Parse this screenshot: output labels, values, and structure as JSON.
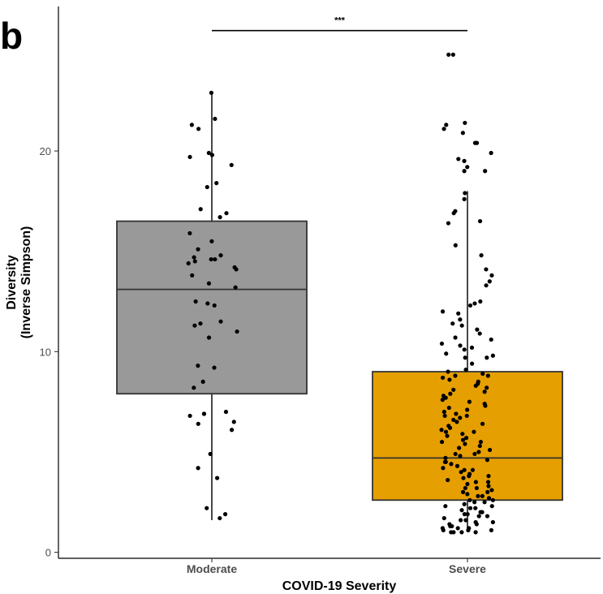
{
  "panel_label": "b",
  "chart_data": {
    "type": "boxplot",
    "xlabel": "COVID-19 Severity",
    "ylabel_line1": "Diversity",
    "ylabel_line2": "(Inverse Simpson)",
    "categories": [
      "Moderate",
      "Severe"
    ],
    "ylim": [
      -0.3,
      27.2
    ],
    "yticks": [
      0,
      10,
      20
    ],
    "grid": false,
    "significance": {
      "label": "***",
      "between": [
        "Moderate",
        "Severe"
      ],
      "y": 26.0
    },
    "boxes": [
      {
        "category": "Moderate",
        "color": "#999999",
        "whisker_low": 1.6,
        "q1": 7.9,
        "median": 13.1,
        "q3": 16.5,
        "whisker_high": 22.9
      },
      {
        "category": "Severe",
        "color": "#E69F00",
        "whisker_low": 1.0,
        "q1": 2.6,
        "median": 4.7,
        "q3": 9.0,
        "whisker_high": 18.0
      }
    ],
    "points": [
      {
        "category": "Moderate",
        "values": [
          22.9,
          21.6,
          21.3,
          21.1,
          19.9,
          19.8,
          19.7,
          19.3,
          18.4,
          18.2,
          17.1,
          16.9,
          16.7,
          15.9,
          15.5,
          15.1,
          14.8,
          14.7,
          14.6,
          14.6,
          14.5,
          14.4,
          14.2,
          14.1,
          13.8,
          13.4,
          13.2,
          12.5,
          12.4,
          12.3,
          11.5,
          11.4,
          11.3,
          11.0,
          10.7,
          9.3,
          9.2,
          8.5,
          8.2,
          7.0,
          6.9,
          6.9,
          6.8,
          6.5,
          6.4,
          6.1,
          4.9,
          4.2,
          3.7,
          2.2,
          1.9,
          1.7
        ]
      },
      {
        "category": "Severe",
        "values": [
          24.8,
          24.8,
          21.4,
          21.3,
          21.1,
          20.9,
          20.4,
          20.4,
          19.9,
          19.6,
          19.5,
          19.2,
          19.0,
          19.0,
          17.9,
          17.6,
          17.0,
          16.9,
          16.5,
          16.4,
          15.3,
          14.8,
          14.1,
          13.8,
          13.5,
          13.3,
          12.5,
          12.4,
          12.3,
          12.0,
          11.9,
          11.6,
          11.4,
          11.3,
          11.1,
          10.9,
          10.7,
          10.6,
          10.4,
          10.3,
          10.2,
          10.1,
          9.9,
          9.8,
          9.7,
          9.7,
          9.4,
          9.1,
          9.0,
          8.9,
          8.8,
          8.8,
          8.7,
          8.6,
          8.5,
          8.4,
          8.3,
          8.2,
          8.1,
          8.0,
          7.9,
          7.8,
          7.7,
          7.6,
          7.5,
          7.4,
          7.3,
          7.2,
          7.1,
          7.0,
          6.9,
          6.8,
          6.8,
          6.7,
          6.6,
          6.5,
          6.4,
          6.3,
          6.2,
          6.1,
          6.0,
          6.0,
          5.9,
          5.8,
          5.7,
          5.6,
          5.5,
          5.5,
          5.4,
          5.3,
          5.2,
          5.1,
          5.0,
          4.9,
          4.9,
          4.8,
          4.7,
          4.6,
          4.5,
          4.5,
          4.4,
          4.3,
          4.2,
          4.1,
          4.1,
          4.0,
          3.9,
          3.8,
          3.8,
          3.7,
          3.6,
          3.5,
          3.5,
          3.4,
          3.3,
          3.2,
          3.2,
          3.1,
          3.0,
          3.0,
          2.9,
          2.8,
          2.8,
          2.7,
          2.6,
          2.6,
          2.5,
          2.5,
          2.4,
          2.3,
          2.3,
          2.2,
          2.2,
          2.1,
          2.0,
          2.0,
          1.9,
          1.9,
          1.8,
          1.8,
          1.7,
          1.6,
          1.6,
          1.5,
          1.5,
          1.4,
          1.4,
          1.3,
          1.3,
          1.2,
          1.2,
          1.2,
          1.1,
          1.1,
          1.1,
          1.0,
          1.0,
          1.0,
          1.0
        ]
      }
    ]
  }
}
